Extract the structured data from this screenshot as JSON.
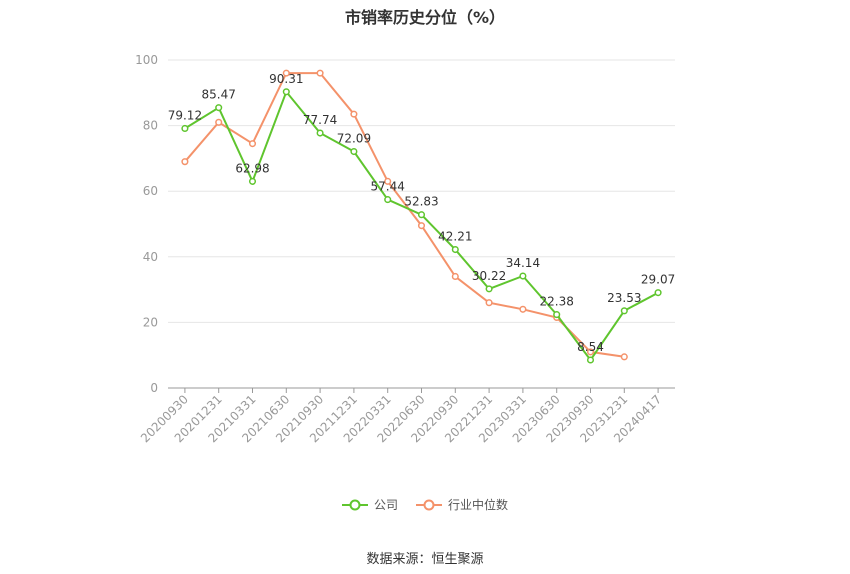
{
  "chart_data": {
    "type": "line",
    "title": "市销率历史分位（%）",
    "categories": [
      "20200930",
      "20201231",
      "20210331",
      "20210630",
      "20210930",
      "20211231",
      "20220331",
      "20220630",
      "20220930",
      "20221231",
      "20230331",
      "20230630",
      "20230930",
      "20231231",
      "20240417"
    ],
    "series": [
      {
        "name": "公司",
        "color": "#5fc52e",
        "values": [
          79.12,
          85.47,
          62.98,
          90.31,
          77.74,
          72.09,
          57.44,
          52.83,
          42.21,
          30.22,
          34.14,
          22.38,
          8.54,
          23.53,
          29.07
        ],
        "labels": [
          "79.12",
          "85.47",
          "62.98",
          "90.31",
          "77.74",
          "72.09",
          "57.44",
          "52.83",
          "42.21",
          "30.22",
          "34.14",
          "22.38",
          "8.54",
          "23.53",
          "29.07"
        ]
      },
      {
        "name": "行业中位数",
        "color": "#f4926a",
        "values": [
          69,
          81,
          74.5,
          96,
          96,
          83.5,
          63,
          49.5,
          34,
          26,
          24,
          21.5,
          11,
          9.5,
          null
        ]
      }
    ],
    "yticks": [
      "0",
      "20",
      "40",
      "60",
      "80",
      "100"
    ],
    "ylim": [
      0,
      100
    ],
    "grid": true,
    "legend_position": "bottom"
  },
  "source": "数据来源：恒生聚源"
}
